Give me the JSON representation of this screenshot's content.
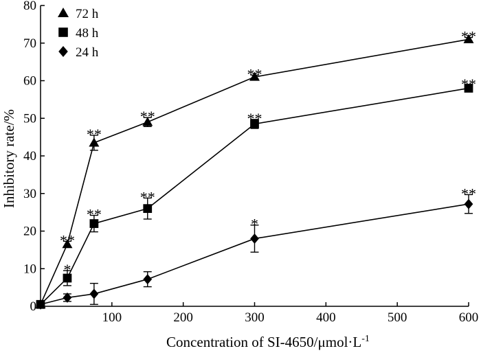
{
  "chart_data": {
    "type": "line",
    "title": "",
    "xlabel": "Concentration of SI-4650/μmol·L",
    "xlabel_superscript": "-1",
    "ylabel": "Inhibitory rate/%",
    "xlim": [
      0,
      600
    ],
    "ylim": [
      0,
      80
    ],
    "x_ticks": [
      100,
      200,
      300,
      400,
      500,
      600
    ],
    "y_ticks": [
      0,
      10,
      20,
      30,
      40,
      50,
      60,
      70,
      80
    ],
    "grid": false,
    "legend_position": "top-left",
    "series": [
      {
        "name": "72 h",
        "marker": "triangle",
        "points": [
          {
            "x": 0,
            "y": 0.5,
            "err": 0,
            "sig": ""
          },
          {
            "x": 37.5,
            "y": 16.5,
            "err": 0.8,
            "sig": "**"
          },
          {
            "x": 75,
            "y": 43.5,
            "err": 2.0,
            "sig": "**"
          },
          {
            "x": 150,
            "y": 49.0,
            "err": 1.2,
            "sig": "**"
          },
          {
            "x": 300,
            "y": 61.0,
            "err": 0.5,
            "sig": "**"
          },
          {
            "x": 600,
            "y": 71.0,
            "err": 0.5,
            "sig": "**"
          }
        ]
      },
      {
        "name": "48 h",
        "marker": "square",
        "points": [
          {
            "x": 0,
            "y": 0.5,
            "err": 0,
            "sig": ""
          },
          {
            "x": 37.5,
            "y": 7.5,
            "err": 2.0,
            "sig": "*"
          },
          {
            "x": 75,
            "y": 22.0,
            "err": 2.2,
            "sig": "**"
          },
          {
            "x": 150,
            "y": 26.0,
            "err": 2.8,
            "sig": "**"
          },
          {
            "x": 300,
            "y": 48.5,
            "err": 1.2,
            "sig": "**"
          },
          {
            "x": 600,
            "y": 58.0,
            "err": 0.8,
            "sig": "**"
          }
        ]
      },
      {
        "name": "24 h",
        "marker": "diamond",
        "points": [
          {
            "x": 0,
            "y": 0.5,
            "err": 0,
            "sig": ""
          },
          {
            "x": 37.5,
            "y": 2.3,
            "err": 1.0,
            "sig": ""
          },
          {
            "x": 75,
            "y": 3.3,
            "err": 2.8,
            "sig": ""
          },
          {
            "x": 150,
            "y": 7.2,
            "err": 2.0,
            "sig": ""
          },
          {
            "x": 300,
            "y": 18.0,
            "err": 3.6,
            "sig": "*"
          },
          {
            "x": 600,
            "y": 27.2,
            "err": 2.5,
            "sig": "**"
          }
        ]
      }
    ]
  }
}
